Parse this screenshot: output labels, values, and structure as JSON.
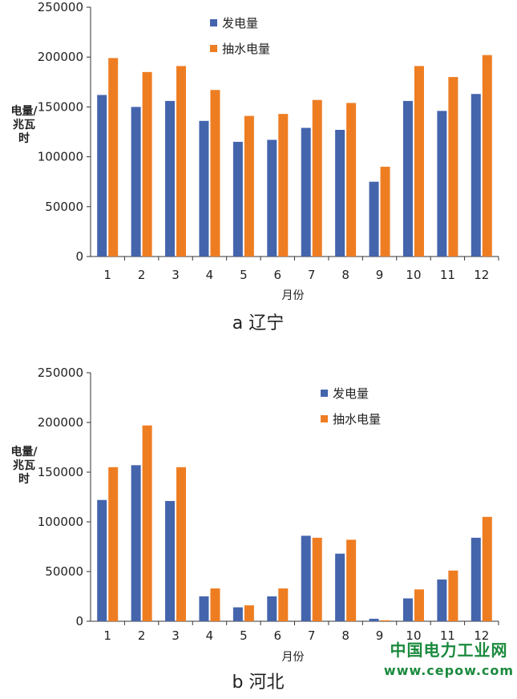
{
  "colors": {
    "gen": "#4464ac",
    "pump": "#ee7d22",
    "axis": "#333333"
  },
  "chart_data": [
    {
      "type": "bar",
      "caption": "a 辽宁",
      "categories": [
        "1",
        "2",
        "3",
        "4",
        "5",
        "6",
        "7",
        "8",
        "9",
        "10",
        "11",
        "12"
      ],
      "xlabel": "月份",
      "ylabel": "电量/兆瓦时",
      "ylim": [
        0,
        250000
      ],
      "yticks": [
        0,
        50000,
        100000,
        150000,
        200000,
        250000
      ],
      "legend_position": "top-center",
      "series": [
        {
          "name": "发电量",
          "values": [
            162000,
            150000,
            156000,
            136000,
            115000,
            117000,
            129000,
            127000,
            75000,
            156000,
            146000,
            163000
          ]
        },
        {
          "name": "抽水电量",
          "values": [
            199000,
            185000,
            191000,
            167000,
            141000,
            143000,
            157000,
            154000,
            90000,
            191000,
            180000,
            202000
          ]
        }
      ]
    },
    {
      "type": "bar",
      "caption": "b 河北",
      "categories": [
        "1",
        "2",
        "3",
        "4",
        "5",
        "6",
        "7",
        "8",
        "9",
        "10",
        "11",
        "12"
      ],
      "xlabel": "月份",
      "ylabel": "电量/兆瓦时",
      "ylim": [
        0,
        250000
      ],
      "yticks": [
        0,
        50000,
        100000,
        150000,
        200000,
        250000
      ],
      "legend_position": "top-right",
      "series": [
        {
          "name": "发电量",
          "values": [
            122000,
            157000,
            121000,
            25000,
            14000,
            25000,
            86000,
            68000,
            2500,
            23000,
            42000,
            84000
          ]
        },
        {
          "name": "抽水电量",
          "values": [
            155000,
            197000,
            155000,
            33000,
            16000,
            33000,
            84000,
            82000,
            1000,
            32000,
            51000,
            105000
          ]
        }
      ]
    }
  ],
  "watermark": {
    "line1": "中国电力工业网",
    "line2": "www.cepow.com"
  }
}
